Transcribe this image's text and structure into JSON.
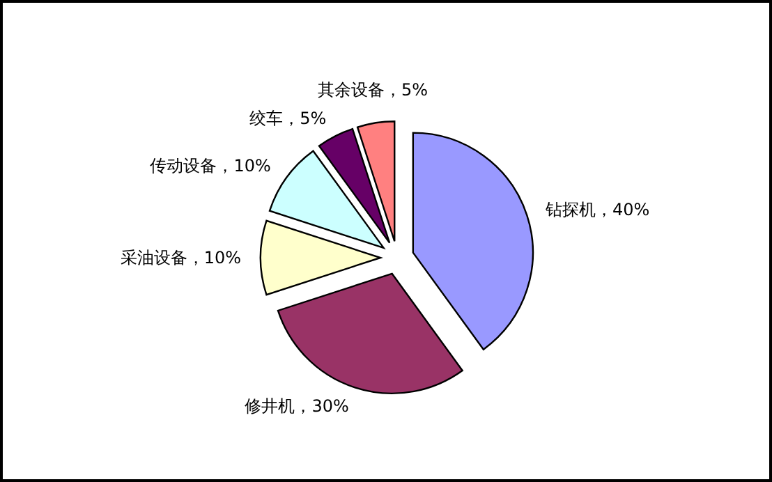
{
  "chart_data": {
    "type": "pie",
    "categories": [
      "钻探机",
      "修井机",
      "采油设备",
      "传动设备",
      "绞车",
      "其余设备"
    ],
    "values": [
      40,
      30,
      10,
      10,
      5,
      5
    ],
    "value_labels": [
      "40%",
      "30%",
      "10%",
      "10%",
      "5%",
      "5%"
    ],
    "colors": [
      "#9999ff",
      "#993366",
      "#ffffcc",
      "#ccffff",
      "#660066",
      "#ff8080"
    ]
  }
}
